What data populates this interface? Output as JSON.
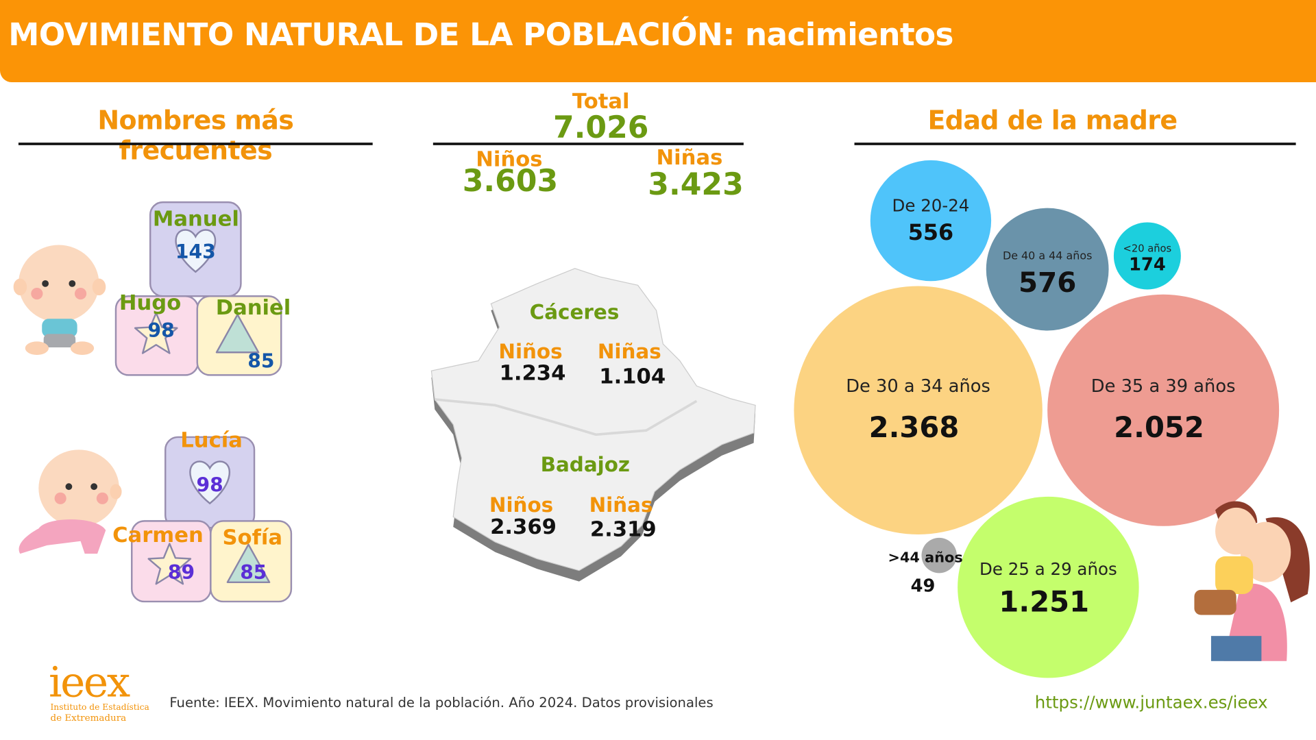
{
  "header": {
    "title": "MOVIMIENTO NATURAL DE LA POBLACIÓN: nacimientos"
  },
  "names": {
    "title": "Nombres más frecuentes",
    "boys": [
      {
        "name": "Manuel",
        "count": "143"
      },
      {
        "name": "Hugo",
        "count": "98"
      },
      {
        "name": "Daniel",
        "count": "85"
      }
    ],
    "girls": [
      {
        "name": "Lucía",
        "count": "98"
      },
      {
        "name": "Carmen",
        "count": "89"
      },
      {
        "name": "Sofía",
        "count": "85"
      }
    ]
  },
  "totals": {
    "total_label": "Total",
    "total": "7.026",
    "boys_label": "Niños",
    "boys": "3.603",
    "girls_label": "Niñas",
    "girls": "3.423"
  },
  "map": {
    "caceres": {
      "name": "Cáceres",
      "boys_label": "Niños",
      "boys": "1.234",
      "girls_label": "Niñas",
      "girls": "1.104"
    },
    "badajoz": {
      "name": "Badajoz",
      "boys_label": "Niños",
      "boys": "2.369",
      "girls_label": "Niñas",
      "girls": "2.319"
    }
  },
  "mother_age": {
    "title": "Edad de la madre",
    "groups": [
      {
        "label": "De 20-24",
        "value": "556",
        "color": "#4fc4fa"
      },
      {
        "label": "De 40 a 44 años",
        "value": "576",
        "color": "#6a93aa"
      },
      {
        "label": "<20 años",
        "value": "174",
        "color": "#1ccfdd"
      },
      {
        "label": "De 30 a 34 años",
        "value": "2.368",
        "color": "#fcd382"
      },
      {
        "label": "De 35 a 39 años",
        "value": "2.052",
        "color": "#ee9c92"
      },
      {
        "label": "De 25 a 29 años",
        "value": "1.251",
        "color": "#c4fe6c"
      },
      {
        "label": ">44 años",
        "value": "49",
        "color": "#aaaaaa"
      }
    ]
  },
  "footer": {
    "logo": "ieex",
    "logo_sub1": "Instituto de Estadística",
    "logo_sub2": "de Extremadura",
    "source": "Fuente: IEEX. Movimiento natural de la población. Año 2024. Datos provisionales",
    "url": "https://www.juntaex.es/ieex"
  }
}
